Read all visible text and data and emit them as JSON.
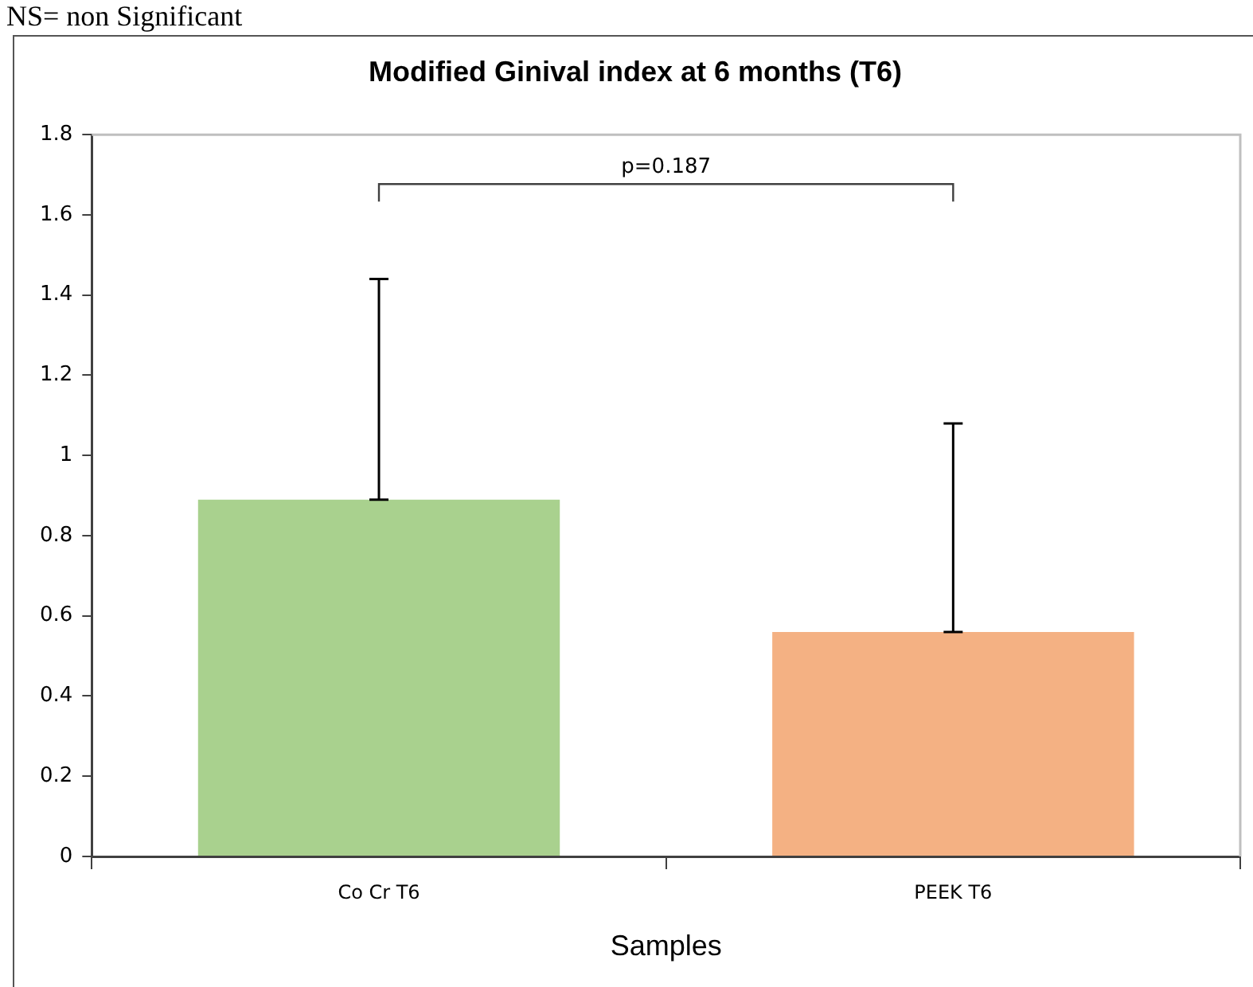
{
  "chart_data": {
    "type": "bar",
    "title": "Modified Ginival index at 6 months (T6)",
    "xlabel": "Samples",
    "categories": [
      "Co Cr T6",
      "PEEK T6"
    ],
    "values": [
      0.89,
      0.56
    ],
    "colors": [
      "#a9d18e",
      "#f4b183"
    ],
    "errors": [
      [
        0.89,
        1.44
      ],
      [
        0.56,
        1.08
      ]
    ],
    "ylim": [
      0,
      1.8
    ],
    "yticks": [
      0,
      0.2,
      0.4,
      0.6,
      0.8,
      1,
      1.2,
      1.4,
      1.6,
      1.8
    ],
    "grid": false,
    "legend": false,
    "annotations": [
      "NS= non Significant",
      "p=0.187"
    ]
  }
}
